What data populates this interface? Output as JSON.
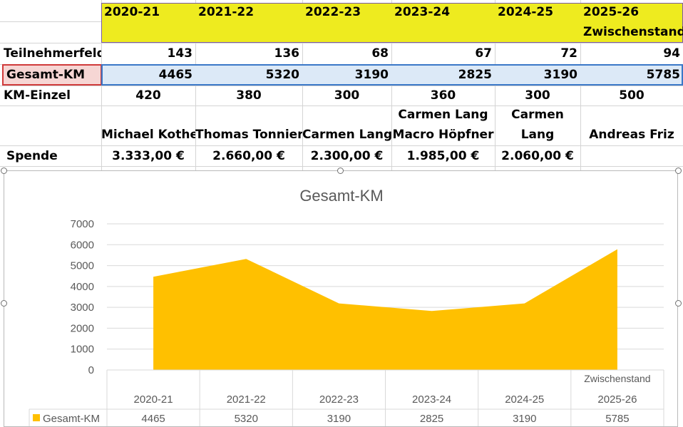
{
  "sheet": {
    "years": [
      "2020-21",
      "2021-22",
      "2022-23",
      "2023-24",
      "2024-25",
      "2025-26"
    ],
    "status_note": "Zwischenstand",
    "rows": {
      "teilnehmerfeld": {
        "label": "Teilnehmerfeld",
        "values": [
          "143",
          "136",
          "68",
          "67",
          "72",
          "94"
        ]
      },
      "gesamt_km": {
        "label": "Gesamt-KM",
        "values": [
          "4465",
          "5320",
          "3190",
          "2825",
          "3190",
          "5785"
        ]
      },
      "km_einzel": {
        "label": "KM-Einzel",
        "values": [
          "420",
          "380",
          "300",
          "360",
          "300",
          "500"
        ]
      },
      "names": {
        "values": [
          [
            "Michael Kothe"
          ],
          [
            "Thomas Tonnier"
          ],
          [
            "Carmen Lang"
          ],
          [
            "Carmen Lang",
            "Macro Höpfner"
          ],
          [
            "Carmen",
            "Lang"
          ],
          [
            "Andreas Friz"
          ]
        ]
      },
      "spende": {
        "label": "Spende",
        "values": [
          "3.333,00 €",
          "2.660,00 €",
          "2.300,00 €",
          "1.985,00 €",
          "2.060,00 €",
          ""
        ]
      }
    }
  },
  "colors": {
    "area_fill": "#ffc000",
    "header_fill": "#eeeb1f",
    "selection_fill": "#dce9f7",
    "active_label_fill": "#f6d6d4"
  },
  "chart_data": {
    "type": "area",
    "title": "Gesamt-KM",
    "categories": [
      "2020-21",
      "2021-22",
      "2022-23",
      "2023-24",
      "2024-25",
      "2025-26"
    ],
    "category_note": [
      "",
      "",
      "",
      "",
      "",
      "Zwischenstand"
    ],
    "series": [
      {
        "name": "Gesamt-KM",
        "values": [
          4465,
          5320,
          3190,
          2825,
          3190,
          5785
        ]
      }
    ],
    "ylim": [
      0,
      7000
    ],
    "yticks": [
      0,
      1000,
      2000,
      3000,
      4000,
      5000,
      6000,
      7000
    ],
    "grid": true,
    "data_table": true
  }
}
